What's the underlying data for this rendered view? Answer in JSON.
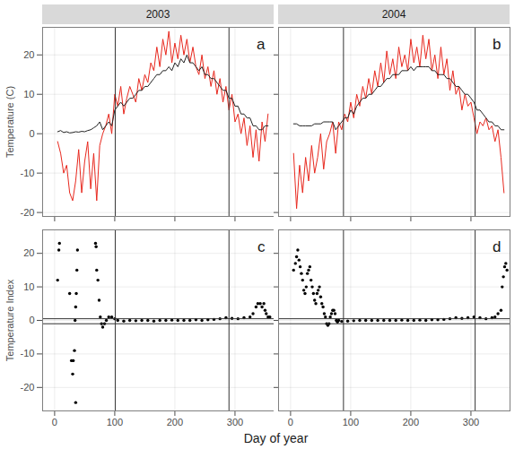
{
  "xlabel": "Day of year",
  "chart_data": [
    {
      "type": "line",
      "title": "2003",
      "annotation": "a",
      "ylabel": "Temperature (C)",
      "x": [
        5,
        10,
        15,
        20,
        25,
        30,
        35,
        40,
        45,
        50,
        55,
        60,
        65,
        70,
        75,
        80,
        85,
        90,
        95,
        100,
        105,
        110,
        115,
        120,
        125,
        130,
        135,
        140,
        145,
        150,
        155,
        160,
        165,
        170,
        175,
        180,
        185,
        190,
        195,
        200,
        205,
        210,
        215,
        220,
        225,
        230,
        235,
        240,
        245,
        250,
        255,
        260,
        265,
        270,
        275,
        280,
        285,
        290,
        295,
        300,
        305,
        310,
        315,
        320,
        325,
        330,
        335,
        340,
        345,
        350,
        355
      ],
      "series": [
        {
          "color": "#e8281e",
          "values": [
            -2,
            -5,
            -10,
            -8,
            -15,
            -17,
            -12,
            -4,
            -15,
            -7,
            -2,
            -14,
            -5,
            -17,
            -3,
            0,
            2,
            5,
            0,
            10,
            7,
            12,
            5,
            9,
            12,
            10,
            8,
            14,
            11,
            15,
            13,
            18,
            16,
            22,
            17,
            24,
            20,
            26,
            18,
            23,
            19,
            25,
            20,
            24,
            18,
            22,
            17,
            15,
            20,
            14,
            17,
            12,
            16,
            10,
            14,
            8,
            12,
            6,
            10,
            3,
            5,
            0,
            4,
            -3,
            2,
            -6,
            1,
            -7,
            3,
            -2,
            5
          ]
        },
        {
          "color": "#222222",
          "values": [
            0.5,
            0.8,
            0.3,
            0.5,
            0.2,
            0.3,
            0.5,
            0.4,
            0.6,
            0.5,
            0.8,
            1,
            1.5,
            2,
            3,
            1,
            2,
            3,
            2,
            6,
            7,
            8,
            7,
            8,
            9,
            9,
            10,
            11,
            11,
            12,
            12,
            13,
            14,
            15,
            15,
            16,
            16,
            17,
            16,
            18,
            17,
            19,
            18,
            20,
            18,
            18,
            17,
            16,
            17,
            15,
            15,
            14,
            14,
            13,
            12,
            11,
            11,
            9,
            9,
            7,
            7,
            5,
            5,
            4,
            4,
            2,
            2,
            1,
            1,
            2,
            2
          ]
        }
      ],
      "xlim": [
        -20,
        365
      ],
      "xticks": [
        0,
        100,
        200,
        300
      ],
      "ylim": [
        -21,
        27
      ],
      "yticks": [
        -20,
        -10,
        0,
        10,
        20
      ],
      "vlines": [
        101,
        290
      ],
      "grid": true,
      "tick_labels": "y"
    },
    {
      "type": "line",
      "title": "2004",
      "annotation": "b",
      "x": [
        5,
        10,
        15,
        20,
        25,
        30,
        35,
        40,
        45,
        50,
        55,
        60,
        65,
        70,
        75,
        80,
        85,
        90,
        95,
        100,
        105,
        110,
        115,
        120,
        125,
        130,
        135,
        140,
        145,
        150,
        155,
        160,
        165,
        170,
        175,
        180,
        185,
        190,
        195,
        200,
        205,
        210,
        215,
        220,
        225,
        230,
        235,
        240,
        245,
        250,
        255,
        260,
        265,
        270,
        275,
        280,
        285,
        290,
        295,
        300,
        305,
        310,
        315,
        320,
        325,
        330,
        335,
        340,
        345,
        350,
        355
      ],
      "series": [
        {
          "color": "#e8281e",
          "values": [
            -5,
            -19,
            -8,
            -15,
            -6,
            -12,
            -3,
            -10,
            -6,
            0,
            -9,
            -2,
            0,
            3,
            -5,
            3,
            1,
            5,
            3,
            8,
            4,
            10,
            7,
            12,
            9,
            14,
            10,
            16,
            12,
            18,
            13,
            21,
            15,
            19,
            14,
            22,
            17,
            20,
            16,
            24,
            18,
            22,
            17,
            25,
            19,
            24,
            16,
            20,
            14,
            22,
            15,
            19,
            11,
            16,
            10,
            12,
            6,
            10,
            7,
            8,
            4,
            0,
            3,
            2,
            4,
            1,
            2,
            -2,
            1,
            -6,
            -15
          ]
        },
        {
          "color": "#222222",
          "values": [
            2.5,
            2.5,
            2,
            2,
            2,
            2,
            2,
            2.5,
            2.5,
            2.5,
            3,
            3,
            3,
            3,
            1,
            2,
            3,
            4,
            4,
            6,
            5,
            7,
            8,
            9,
            9,
            10,
            10,
            11,
            12,
            12,
            13,
            14,
            14,
            15,
            15,
            15,
            16,
            16,
            16,
            17,
            16,
            17,
            17,
            17,
            17,
            17,
            16,
            16,
            15,
            15,
            15,
            14,
            14,
            13,
            12,
            12,
            11,
            10,
            10,
            9,
            8,
            6,
            6,
            5,
            4,
            3,
            3,
            2,
            2,
            1,
            1
          ]
        }
      ],
      "xlim": [
        -20,
        365
      ],
      "xticks": [
        0,
        100,
        200,
        300
      ],
      "ylim": [
        -21,
        27
      ],
      "yticks": [
        -20,
        -10,
        0,
        10,
        20
      ],
      "vlines": [
        88,
        307
      ],
      "grid": true,
      "tick_labels": false
    },
    {
      "type": "scatter",
      "annotation": "c",
      "ylabel": "Temperature Index",
      "color": "#000000",
      "marker": "circle",
      "x": [
        5,
        7,
        8,
        25,
        28,
        30,
        31,
        33,
        34,
        35,
        35,
        36,
        37,
        38,
        68,
        69,
        70,
        72,
        74,
        76,
        78,
        80,
        83,
        86,
        90,
        95,
        100,
        105,
        115,
        125,
        135,
        145,
        155,
        165,
        175,
        185,
        195,
        205,
        215,
        225,
        235,
        245,
        255,
        265,
        275,
        285,
        295,
        305,
        315,
        325,
        330,
        335,
        338,
        342,
        345,
        348,
        350,
        352,
        355,
        358
      ],
      "values": [
        12,
        21,
        23,
        8,
        -12,
        -16,
        -12,
        -9,
        0,
        4,
        -24.5,
        8,
        15,
        21,
        23,
        22,
        15,
        12,
        6,
        1,
        -1,
        -2,
        -1,
        0,
        1,
        1,
        0.5,
        0,
        -0.2,
        0,
        -0.1,
        0,
        0,
        -0.2,
        0,
        0,
        0.1,
        0,
        0,
        0,
        0.2,
        0,
        0.2,
        0.3,
        0.5,
        0.8,
        0.6,
        0.5,
        0.8,
        1,
        2,
        4,
        5,
        5,
        4,
        5,
        3,
        2,
        1,
        1
      ],
      "xlim": [
        -20,
        365
      ],
      "xticks": [
        0,
        100,
        200,
        300
      ],
      "ylim": [
        -27,
        27
      ],
      "yticks": [
        -20,
        -10,
        0,
        10,
        20
      ],
      "vlines": [
        101,
        290
      ],
      "hlines": [
        -1,
        0.5
      ],
      "grid": true
    },
    {
      "type": "scatter",
      "annotation": "d",
      "color": "#000000",
      "marker": "circle",
      "x": [
        5,
        8,
        10,
        12,
        14,
        16,
        18,
        20,
        22,
        24,
        26,
        28,
        30,
        32,
        34,
        36,
        38,
        40,
        42,
        44,
        46,
        48,
        50,
        52,
        54,
        56,
        58,
        60,
        62,
        64,
        66,
        68,
        70,
        72,
        74,
        76,
        78,
        80,
        85,
        95,
        105,
        115,
        125,
        135,
        145,
        155,
        165,
        175,
        185,
        195,
        205,
        215,
        225,
        235,
        245,
        255,
        265,
        275,
        285,
        295,
        305,
        315,
        325,
        335,
        340,
        345,
        350,
        352,
        354,
        356,
        358,
        360
      ],
      "values": [
        15,
        17,
        19,
        21,
        18,
        16,
        14,
        12,
        9,
        8,
        10,
        14,
        15,
        16,
        12,
        10,
        8,
        6,
        5,
        8,
        9,
        10,
        7,
        5,
        4,
        2,
        1,
        -1,
        -1.5,
        -1,
        1,
        2,
        3,
        3,
        2,
        0,
        -0.5,
        0,
        -0.3,
        -0.2,
        -0.1,
        0,
        0,
        0,
        0,
        0,
        0,
        0,
        0.1,
        0,
        0,
        0.1,
        0,
        0.2,
        0.2,
        0.3,
        0.5,
        0.8,
        0.6,
        0.8,
        1,
        0.8,
        0.5,
        0.8,
        1,
        2,
        3,
        10,
        13,
        16,
        17,
        15
      ],
      "xlim": [
        -20,
        365
      ],
      "xticks": [
        0,
        100,
        200,
        300
      ],
      "ylim": [
        -27,
        27
      ],
      "yticks": [
        -20,
        -10,
        0,
        10,
        20
      ],
      "vlines": [
        88,
        307
      ],
      "hlines": [
        -1,
        0.5
      ],
      "grid": true,
      "tick_labels": "x"
    }
  ]
}
